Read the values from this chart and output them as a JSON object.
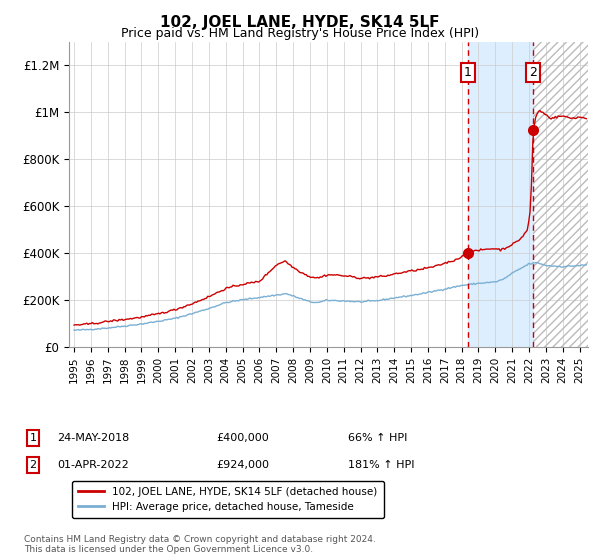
{
  "title": "102, JOEL LANE, HYDE, SK14 5LF",
  "subtitle": "Price paid vs. HM Land Registry's House Price Index (HPI)",
  "ylabel_ticks": [
    "£0",
    "£200K",
    "£400K",
    "£600K",
    "£800K",
    "£1M",
    "£1.2M"
  ],
  "ytick_vals": [
    0,
    200000,
    400000,
    600000,
    800000,
    1000000,
    1200000
  ],
  "ylim": [
    0,
    1300000
  ],
  "xlim_start": 1994.7,
  "xlim_end": 2025.5,
  "marker1_x": 2018.38,
  "marker1_y": 400000,
  "marker2_x": 2022.25,
  "marker2_y": 924000,
  "legend_line1": "102, JOEL LANE, HYDE, SK14 5LF (detached house)",
  "legend_line2": "HPI: Average price, detached house, Tameside",
  "marker1_label": "1",
  "marker2_label": "2",
  "marker1_date": "24-MAY-2018",
  "marker1_price": "£400,000",
  "marker1_hpi": "66% ↑ HPI",
  "marker2_date": "01-APR-2022",
  "marker2_price": "£924,000",
  "marker2_hpi": "181% ↑ HPI",
  "red_color": "#cc0000",
  "blue_color": "#7aafd4",
  "shade_color": "#ddeeff",
  "hatch_color": "#bbbbbb",
  "grid_color": "#cccccc",
  "footnote": "Contains HM Land Registry data © Crown copyright and database right 2024.\nThis data is licensed under the Open Government Licence v3.0."
}
